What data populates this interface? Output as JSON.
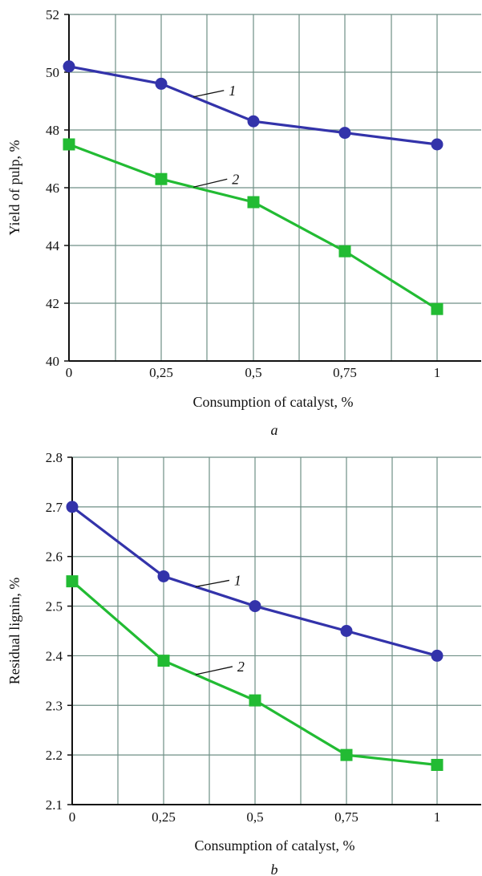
{
  "chart_data": [
    {
      "type": "line",
      "panel_label": "a",
      "xlabel": "Consumption of catalyst, %",
      "ylabel": "Yield of pulp, %",
      "x": [
        0,
        0.25,
        0.5,
        0.75,
        1
      ],
      "x_tick_labels": [
        "0",
        "0,25",
        "0,5",
        "0,75",
        "1"
      ],
      "ylim": [
        40,
        52
      ],
      "y_ticks": [
        40,
        42,
        44,
        46,
        48,
        50,
        52
      ],
      "y_tick_labels": [
        "40",
        "42",
        "44",
        "46",
        "48",
        "50",
        "52"
      ],
      "grid": true,
      "series": [
        {
          "name": "1",
          "color": "#3333aa",
          "marker": "circle",
          "values": [
            50.2,
            49.6,
            48.3,
            47.9,
            47.5
          ]
        },
        {
          "name": "2",
          "color": "#22bb33",
          "marker": "square",
          "values": [
            47.5,
            46.3,
            45.5,
            43.8,
            41.8
          ]
        }
      ]
    },
    {
      "type": "line",
      "panel_label": "b",
      "xlabel": "Consumption of catalyst, %",
      "ylabel": "Residual lignin, %",
      "x": [
        0,
        0.25,
        0.5,
        0.75,
        1
      ],
      "x_tick_labels": [
        "0",
        "0,25",
        "0,5",
        "0,75",
        "1"
      ],
      "ylim": [
        2.1,
        2.8
      ],
      "y_ticks": [
        2.1,
        2.2,
        2.3,
        2.4,
        2.5,
        2.6,
        2.7,
        2.8
      ],
      "y_tick_labels": [
        "2.1",
        "2.2",
        "2.3",
        "2.4",
        "2.5",
        "2.6",
        "2.7",
        "2.8"
      ],
      "grid": true,
      "series": [
        {
          "name": "1",
          "color": "#3333aa",
          "marker": "circle",
          "values": [
            2.7,
            2.56,
            2.5,
            2.45,
            2.4
          ]
        },
        {
          "name": "2",
          "color": "#22bb33",
          "marker": "square",
          "values": [
            2.55,
            2.39,
            2.31,
            2.2,
            2.18
          ]
        }
      ]
    }
  ]
}
